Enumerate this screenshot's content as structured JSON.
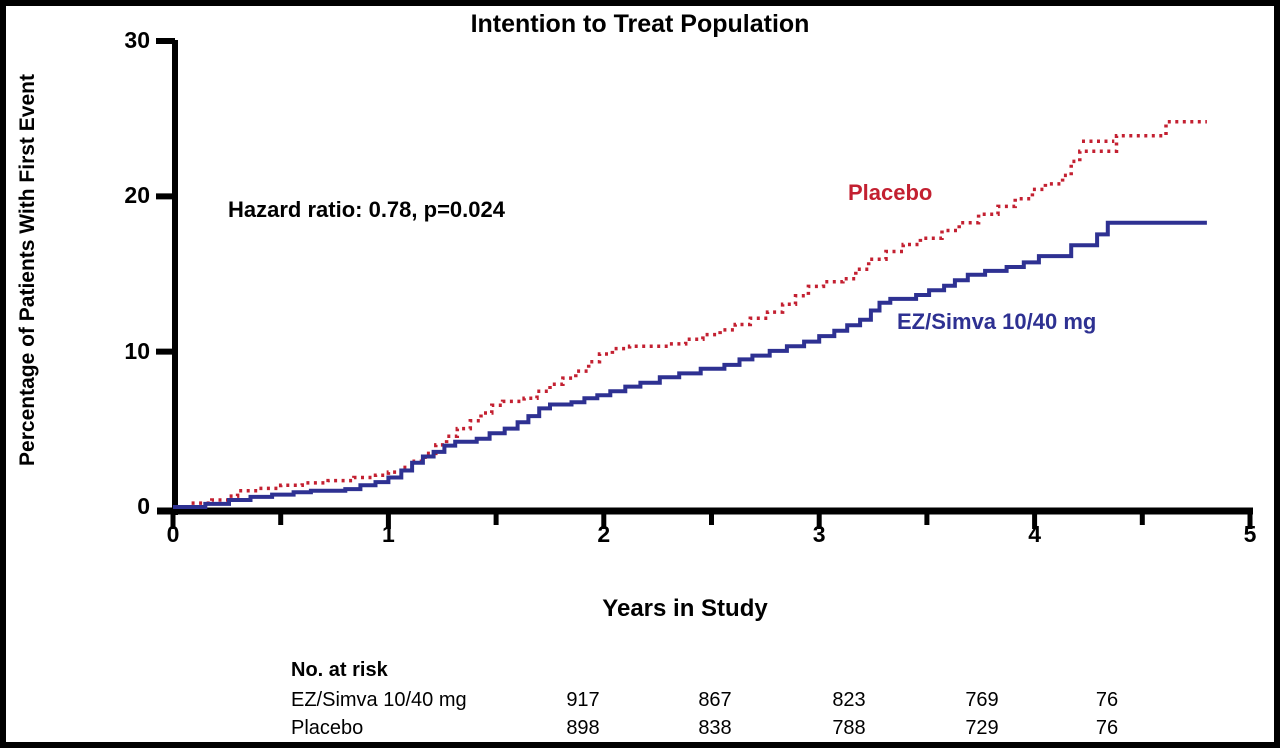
{
  "figure": {
    "background": "#ffffff",
    "border_color": "#000000"
  },
  "chart_data": {
    "type": "line",
    "subtype": "kaplan-meier-step",
    "title": "Intention to Treat Population",
    "xlabel": "Years in Study",
    "ylabel": "Percentage of Patients With First Event",
    "annotation": "Hazard ratio: 0.78, p=0.024",
    "xlim": [
      0,
      5
    ],
    "ylim": [
      0,
      30
    ],
    "xticks": [
      0,
      1,
      2,
      3,
      4,
      5
    ],
    "xticks_minor": [
      0.5,
      1.5,
      2.5,
      3.5,
      4.5
    ],
    "yticks": [
      0,
      10,
      20,
      30
    ],
    "grid": false,
    "axis_color": "#000000",
    "legend_position": "inline-labels",
    "series": [
      {
        "name": "Placebo",
        "color": "#C32031",
        "style": "dotted",
        "bold_segment": {
          "x_start": 4.22,
          "x_end": 4.37,
          "y": 23.55
        },
        "points": [
          [
            0,
            0
          ],
          [
            0.08,
            0.25
          ],
          [
            0.18,
            0.45
          ],
          [
            0.26,
            0.7
          ],
          [
            0.3,
            1.05
          ],
          [
            0.4,
            1.2
          ],
          [
            0.5,
            1.4
          ],
          [
            0.6,
            1.55
          ],
          [
            0.72,
            1.7
          ],
          [
            0.84,
            1.9
          ],
          [
            0.94,
            2.05
          ],
          [
            1.0,
            2.25
          ],
          [
            1.06,
            2.55
          ],
          [
            1.12,
            2.95
          ],
          [
            1.17,
            3.45
          ],
          [
            1.22,
            4.0
          ],
          [
            1.27,
            4.55
          ],
          [
            1.32,
            5.05
          ],
          [
            1.38,
            5.55
          ],
          [
            1.43,
            6.05
          ],
          [
            1.48,
            6.55
          ],
          [
            1.53,
            6.8
          ],
          [
            1.63,
            7.0
          ],
          [
            1.69,
            7.45
          ],
          [
            1.75,
            7.9
          ],
          [
            1.81,
            8.3
          ],
          [
            1.87,
            8.75
          ],
          [
            1.93,
            9.35
          ],
          [
            1.98,
            9.85
          ],
          [
            2.04,
            10.2
          ],
          [
            2.12,
            10.35
          ],
          [
            2.3,
            10.5
          ],
          [
            2.38,
            10.8
          ],
          [
            2.46,
            11.1
          ],
          [
            2.54,
            11.4
          ],
          [
            2.61,
            11.75
          ],
          [
            2.68,
            12.15
          ],
          [
            2.76,
            12.55
          ],
          [
            2.83,
            13.05
          ],
          [
            2.89,
            13.6
          ],
          [
            2.95,
            14.2
          ],
          [
            3.02,
            14.5
          ],
          [
            3.11,
            14.7
          ],
          [
            3.17,
            15.3
          ],
          [
            3.23,
            15.95
          ],
          [
            3.31,
            16.45
          ],
          [
            3.39,
            16.9
          ],
          [
            3.47,
            17.3
          ],
          [
            3.57,
            17.8
          ],
          [
            3.65,
            18.3
          ],
          [
            3.74,
            18.85
          ],
          [
            3.83,
            19.35
          ],
          [
            3.91,
            19.85
          ],
          [
            3.99,
            20.45
          ],
          [
            4.05,
            20.8
          ],
          [
            4.13,
            21.35
          ],
          [
            4.17,
            22.25
          ],
          [
            4.21,
            22.9
          ],
          [
            4.38,
            23.9
          ],
          [
            4.61,
            24.8
          ],
          [
            4.8,
            24.8
          ]
        ]
      },
      {
        "name": "EZ/Simva 10/40 mg",
        "color": "#2E3192",
        "style": "solid",
        "points": [
          [
            0,
            0
          ],
          [
            0.15,
            0.2
          ],
          [
            0.26,
            0.45
          ],
          [
            0.36,
            0.65
          ],
          [
            0.46,
            0.8
          ],
          [
            0.56,
            0.95
          ],
          [
            0.64,
            1.05
          ],
          [
            0.8,
            1.15
          ],
          [
            0.87,
            1.4
          ],
          [
            0.94,
            1.6
          ],
          [
            1.0,
            1.9
          ],
          [
            1.06,
            2.35
          ],
          [
            1.11,
            2.85
          ],
          [
            1.16,
            3.25
          ],
          [
            1.21,
            3.55
          ],
          [
            1.26,
            3.95
          ],
          [
            1.31,
            4.2
          ],
          [
            1.41,
            4.4
          ],
          [
            1.47,
            4.75
          ],
          [
            1.54,
            5.05
          ],
          [
            1.6,
            5.45
          ],
          [
            1.65,
            5.85
          ],
          [
            1.7,
            6.35
          ],
          [
            1.75,
            6.6
          ],
          [
            1.85,
            6.75
          ],
          [
            1.91,
            7.0
          ],
          [
            1.97,
            7.2
          ],
          [
            2.03,
            7.45
          ],
          [
            2.1,
            7.75
          ],
          [
            2.17,
            8.0
          ],
          [
            2.26,
            8.35
          ],
          [
            2.35,
            8.6
          ],
          [
            2.45,
            8.9
          ],
          [
            2.56,
            9.15
          ],
          [
            2.63,
            9.5
          ],
          [
            2.69,
            9.75
          ],
          [
            2.77,
            10.05
          ],
          [
            2.85,
            10.35
          ],
          [
            2.93,
            10.65
          ],
          [
            3.0,
            11.0
          ],
          [
            3.07,
            11.35
          ],
          [
            3.13,
            11.7
          ],
          [
            3.19,
            12.05
          ],
          [
            3.24,
            12.65
          ],
          [
            3.28,
            13.15
          ],
          [
            3.33,
            13.4
          ],
          [
            3.45,
            13.65
          ],
          [
            3.51,
            13.95
          ],
          [
            3.58,
            14.25
          ],
          [
            3.63,
            14.6
          ],
          [
            3.69,
            14.95
          ],
          [
            3.77,
            15.2
          ],
          [
            3.87,
            15.45
          ],
          [
            3.95,
            15.75
          ],
          [
            4.02,
            16.15
          ],
          [
            4.17,
            16.85
          ],
          [
            4.29,
            17.55
          ],
          [
            4.34,
            18.3
          ],
          [
            4.8,
            18.3
          ]
        ]
      }
    ],
    "risk_table": {
      "header": "No. at risk",
      "rows": [
        {
          "label": "EZ/Simva 10/40 mg",
          "values": [
            "917",
            "867",
            "823",
            "769",
            "76"
          ]
        },
        {
          "label": "Placebo",
          "values": [
            "898",
            "838",
            "788",
            "729",
            "76"
          ]
        }
      ]
    }
  }
}
